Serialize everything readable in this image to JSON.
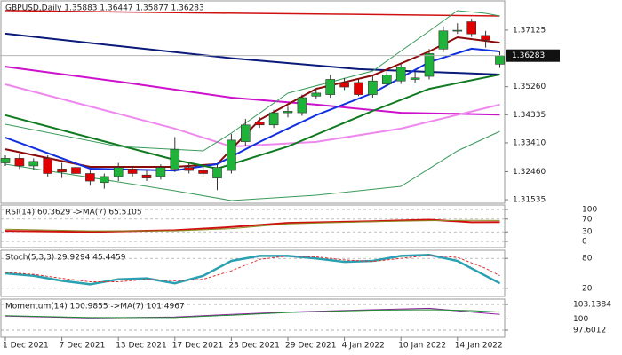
{
  "chart_data": [
    {
      "type": "candlestick",
      "title": "GBPUSD,Daily  1.35883 1.36447 1.35877 1.36283",
      "categories": [
        "1 Dec 2021",
        null,
        null,
        null,
        "7 Dec 2021",
        null,
        null,
        null,
        "13 Dec 2021",
        null,
        null,
        null,
        "17 Dec 2021",
        null,
        null,
        null,
        "23 Dec 2021",
        null,
        null,
        null,
        "29 Dec 2021",
        null,
        null,
        null,
        "4 Jan 2022",
        null,
        null,
        null,
        "10 Jan 2022",
        null,
        null,
        null,
        "14 Jan 2022",
        null,
        null,
        null
      ],
      "open": [
        1.3275,
        1.329,
        1.3265,
        1.329,
        1.3255,
        1.326,
        1.324,
        1.321,
        1.323,
        1.3255,
        1.3235,
        1.323,
        1.3255,
        1.326,
        1.325,
        1.3225,
        1.325,
        1.3345,
        1.341,
        1.34,
        1.344,
        1.344,
        1.3495,
        1.35,
        1.354,
        1.354,
        1.35,
        1.3535,
        1.3545,
        1.355,
        1.356,
        1.365,
        1.371,
        1.374,
        1.3695,
        1.36
      ],
      "high": [
        1.33,
        1.3305,
        1.329,
        1.33,
        1.3275,
        1.327,
        1.325,
        1.324,
        1.3275,
        1.3265,
        1.325,
        1.327,
        1.336,
        1.3275,
        1.3265,
        1.327,
        1.337,
        1.342,
        1.3425,
        1.345,
        1.346,
        1.35,
        1.352,
        1.3565,
        1.3555,
        1.355,
        1.356,
        1.358,
        1.36,
        1.3575,
        1.365,
        1.3725,
        1.3735,
        1.375,
        1.371,
        1.3645
      ],
      "low": [
        1.3265,
        1.3255,
        1.325,
        1.323,
        1.3225,
        1.323,
        1.32,
        1.319,
        1.3215,
        1.323,
        1.3215,
        1.322,
        1.3245,
        1.324,
        1.323,
        1.3185,
        1.324,
        1.333,
        1.339,
        1.339,
        1.3425,
        1.343,
        1.3485,
        1.349,
        1.3515,
        1.3495,
        1.349,
        1.3525,
        1.3535,
        1.354,
        1.355,
        1.364,
        1.37,
        1.369,
        1.3655,
        1.3588
      ],
      "close": [
        1.329,
        1.3265,
        1.328,
        1.324,
        1.3245,
        1.324,
        1.3215,
        1.323,
        1.326,
        1.324,
        1.3225,
        1.326,
        1.332,
        1.325,
        1.324,
        1.326,
        1.335,
        1.34,
        1.34,
        1.344,
        1.3445,
        1.349,
        1.3505,
        1.355,
        1.3525,
        1.35,
        1.3545,
        1.3565,
        1.359,
        1.3555,
        1.3635,
        1.371,
        1.3712,
        1.37,
        1.368,
        1.3628
      ],
      "up_color": "#1fb33a",
      "down_color": "#e00000",
      "last_price": 1.36283,
      "ylim": [
        1.3142,
        1.38
      ],
      "yticks": [
        1.37125,
        {
          "value": 1.3526,
          "label": "1.35260"
        },
        1.34335,
        {
          "value": 1.3341,
          "label": "1.33410"
        },
        {
          "value": 1.3246,
          "label": "1.32460"
        },
        1.31535
      ],
      "series": [
        {
          "color": "#d01010",
          "width": 1.5,
          "x": [
            0,
            12,
            24,
            35
          ],
          "values": [
            1.3777,
            1.377,
            1.3765,
            1.3759
          ]
        },
        {
          "color": "#0a1a7a",
          "width": 2,
          "x": [
            0,
            8,
            16,
            25,
            35
          ],
          "values": [
            1.3701,
            1.366,
            1.362,
            1.3584,
            1.3566
          ]
        },
        {
          "color": "#cc10cc",
          "width": 2,
          "x": [
            0,
            8,
            16,
            22,
            28,
            35
          ],
          "values": [
            1.3592,
            1.3543,
            1.349,
            1.3467,
            1.344,
            1.3434
          ]
        },
        {
          "color": "#ee88ee",
          "width": 2,
          "x": [
            0,
            12,
            16,
            22,
            28,
            35
          ],
          "values": [
            1.3534,
            1.3388,
            1.3329,
            1.3344,
            1.3388,
            1.3467
          ]
        },
        {
          "color": "#8b0a0a",
          "width": 2,
          "x": [
            0,
            6,
            12,
            15,
            18,
            22,
            26,
            30,
            32,
            35
          ],
          "values": [
            1.332,
            1.3262,
            1.3262,
            1.3271,
            1.3417,
            1.3519,
            1.3563,
            1.3642,
            1.3689,
            1.3671
          ]
        },
        {
          "color": "#1030e0",
          "width": 2,
          "x": [
            0,
            6,
            12,
            15,
            18,
            22,
            26,
            30,
            33,
            35
          ],
          "values": [
            1.3358,
            1.3256,
            1.325,
            1.3271,
            1.3344,
            1.3432,
            1.3505,
            1.3607,
            1.3651,
            1.3642
          ]
        },
        {
          "color": "#107a20",
          "width": 2,
          "x": [
            0,
            6,
            12,
            15,
            20,
            26,
            30,
            35
          ],
          "values": [
            1.3432,
            1.3358,
            1.3285,
            1.3256,
            1.3329,
            1.3446,
            1.3519,
            1.3566
          ]
        },
        {
          "color": "#3a9a5a",
          "width": 1,
          "x": [
            0,
            8,
            14,
            16,
            20,
            26,
            30,
            32,
            34,
            35
          ],
          "values": [
            1.34023,
            1.33292,
            1.33146,
            1.3373,
            1.35046,
            1.35777,
            1.37093,
            1.37766,
            1.37678,
            1.37591
          ]
        },
        {
          "color": "#3a9a5a",
          "width": 1,
          "x": [
            0,
            8,
            12,
            16,
            22,
            28,
            32,
            35
          ],
          "values": [
            1.32707,
            1.32122,
            1.3183,
            1.31508,
            1.31683,
            1.31976,
            1.33146,
            1.33789
          ]
        }
      ]
    },
    {
      "type": "line",
      "title": "RSI(14) 60.3629 ->MA(7) 65.5105",
      "ylim": [
        0,
        100
      ],
      "yticks": [
        100,
        70,
        30,
        0
      ],
      "grid": "dashed",
      "series": [
        {
          "color": "#d01010",
          "width": 2,
          "x": [
            0,
            6,
            12,
            16,
            20,
            26,
            30,
            33,
            35
          ],
          "values": [
            33,
            30,
            35,
            45,
            58,
            63,
            68,
            60,
            60.3629
          ]
        },
        {
          "color": "#8a8a20",
          "width": 1,
          "x": [
            0,
            6,
            12,
            16,
            20,
            26,
            30,
            33,
            35
          ],
          "values": [
            38,
            33,
            33,
            40,
            55,
            62,
            65,
            66,
            65.5105
          ]
        }
      ]
    },
    {
      "type": "line",
      "title": "Stoch(5,3,3) 29.9294 45.4459",
      "ylim": [
        0,
        100
      ],
      "yticks": [
        80,
        20
      ],
      "grid": "dashed",
      "series": [
        {
          "color": "#2aa0b0",
          "width": 2.5,
          "x": [
            0,
            2,
            4,
            6,
            8,
            10,
            12,
            14,
            16,
            18,
            20,
            22,
            24,
            26,
            28,
            30,
            32,
            34,
            35
          ],
          "values": [
            50,
            45,
            35,
            28,
            38,
            40,
            30,
            45,
            75,
            85,
            85,
            80,
            73,
            75,
            85,
            87,
            75,
            45,
            29.9294
          ]
        },
        {
          "color": "#e03030",
          "width": 1,
          "dash": true,
          "x": [
            0,
            2,
            4,
            6,
            8,
            10,
            12,
            14,
            16,
            18,
            20,
            22,
            24,
            26,
            28,
            30,
            32,
            34,
            35
          ],
          "values": [
            52,
            48,
            40,
            33,
            33,
            38,
            35,
            38,
            55,
            78,
            85,
            83,
            77,
            74,
            80,
            86,
            82,
            60,
            45.4459
          ]
        }
      ]
    },
    {
      "type": "line",
      "title": "Momentum(14) 100.9855  ->MA(7) 101.4967",
      "ylim": [
        97.6012,
        103.1384
      ],
      "yticks": [
        103.1384,
        100,
        97.6012
      ],
      "grid": "dashed",
      "series": [
        {
          "color": "#9020a0",
          "width": 1,
          "x": [
            0,
            6,
            12,
            16,
            20,
            26,
            30,
            33,
            35
          ],
          "values": [
            100.6,
            100.2,
            100.4,
            101.0,
            101.5,
            102.0,
            102.3,
            101.5,
            100.9855
          ]
        },
        {
          "color": "#208a30",
          "width": 1,
          "x": [
            0,
            6,
            12,
            16,
            20,
            26,
            30,
            33,
            35
          ],
          "values": [
            100.7,
            100.3,
            100.3,
            100.8,
            101.4,
            101.9,
            102.0,
            101.8,
            101.4967
          ]
        }
      ]
    }
  ]
}
